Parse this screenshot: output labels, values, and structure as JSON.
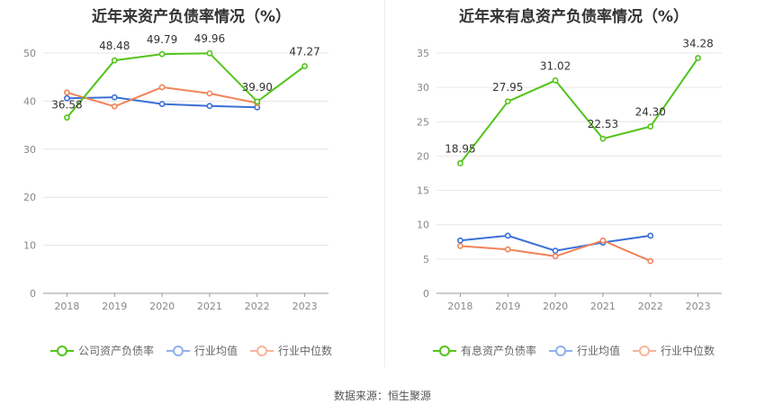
{
  "chart_data": [
    {
      "type": "line",
      "title": "近年来资产负债率情况（%）",
      "categories": [
        "2018",
        "2019",
        "2020",
        "2021",
        "2022",
        "2023"
      ],
      "ylim": [
        0,
        50
      ],
      "yticks": [
        0,
        10,
        20,
        30,
        40,
        50
      ],
      "grid": true,
      "legend_position": "bottom",
      "series": [
        {
          "name": "公司资产负债率",
          "color": "#52c41a",
          "values": [
            36.58,
            48.48,
            49.79,
            49.96,
            39.9,
            47.27
          ],
          "labels": [
            "36.58",
            "48.48",
            "49.79",
            "49.96",
            "39.90",
            "47.27"
          ]
        },
        {
          "name": "行业均值",
          "color": "#3a6fd8",
          "values": [
            40.6,
            40.8,
            39.4,
            39.0,
            38.7,
            null
          ]
        },
        {
          "name": "行业中位数",
          "color": "#f0845a",
          "values": [
            41.8,
            38.9,
            42.9,
            41.6,
            39.6,
            null
          ]
        }
      ]
    },
    {
      "type": "line",
      "title": "近年来有息资产负债率情况（%）",
      "categories": [
        "2018",
        "2019",
        "2020",
        "2021",
        "2022",
        "2023"
      ],
      "ylim": [
        0,
        35
      ],
      "yticks": [
        0,
        5,
        10,
        15,
        20,
        25,
        30,
        35
      ],
      "grid": true,
      "legend_position": "bottom",
      "series": [
        {
          "name": "有息资产负债率",
          "color": "#52c41a",
          "values": [
            18.95,
            27.95,
            31.02,
            22.53,
            24.3,
            34.28
          ],
          "labels": [
            "18.95",
            "27.95",
            "31.02",
            "22.53",
            "24.30",
            "34.28"
          ]
        },
        {
          "name": "行业均值",
          "color": "#3a6fd8",
          "values": [
            7.7,
            8.4,
            6.2,
            7.4,
            8.4,
            null
          ]
        },
        {
          "name": "行业中位数",
          "color": "#f0845a",
          "values": [
            6.9,
            6.4,
            5.4,
            7.7,
            4.7,
            null
          ]
        }
      ]
    }
  ],
  "legend_colors": {
    "primary": "#52c41a",
    "mean": "#8fb0ee",
    "median": "#f6b59c"
  },
  "source": "数据来源：恒生聚源"
}
